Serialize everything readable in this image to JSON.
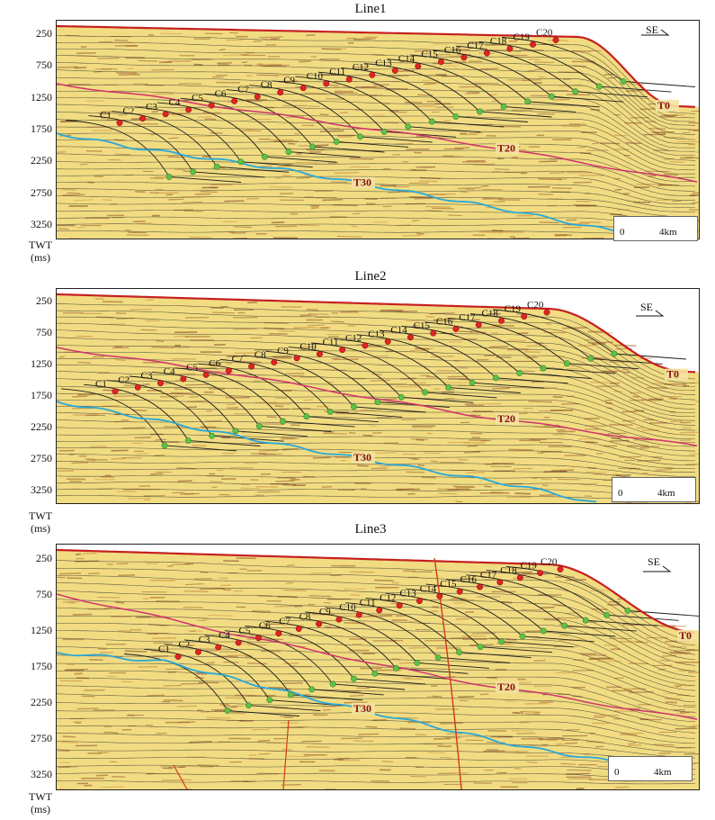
{
  "axis": {
    "ticks": [
      "250",
      "750",
      "1250",
      "1750",
      "2250",
      "2750",
      "3250"
    ],
    "unit_line1": "TWT",
    "unit_line2": "(ms)"
  },
  "direction": "SE",
  "scale": {
    "zero": "0",
    "dist": "4km"
  },
  "colors": {
    "background": "#f1dc82",
    "reflector": "#2a2a2a",
    "t0": "#c62020",
    "t20": "#d0326e",
    "t30": "#2aa8d8",
    "red_dot": "#e02424",
    "green_dot": "#5cc245",
    "fault": "#d23a1c"
  },
  "panels": [
    {
      "title": "Line1",
      "clinoforms": [
        "C1",
        "C2",
        "C3",
        "C4",
        "C5",
        "C6",
        "C7",
        "C8",
        "C9",
        "C10",
        "C11",
        "C12",
        "C13",
        "C14",
        "C15",
        "C16",
        "C17",
        "C18",
        "C19",
        "C20"
      ],
      "horizons": [
        "T0",
        "T20",
        "T30"
      ]
    },
    {
      "title": "Line2",
      "clinoforms": [
        "C1",
        "C2",
        "C3",
        "C4",
        "C5",
        "C6",
        "C7",
        "C8",
        "C9",
        "C10",
        "C11",
        "C12",
        "C13",
        "C14",
        "C15",
        "C16",
        "C17",
        "C18",
        "C19",
        "C20"
      ],
      "horizons": [
        "T0",
        "T20",
        "T30"
      ]
    },
    {
      "title": "Line3",
      "clinoforms": [
        "C1",
        "C2",
        "C3",
        "C4",
        "C5",
        "C6",
        "C7",
        "C8",
        "C9",
        "C10",
        "C11",
        "C12",
        "C13",
        "C14",
        "C15",
        "C16",
        "C17",
        "C18",
        "C19",
        "C20"
      ],
      "horizons": [
        "T0",
        "T20",
        "T30"
      ]
    }
  ]
}
